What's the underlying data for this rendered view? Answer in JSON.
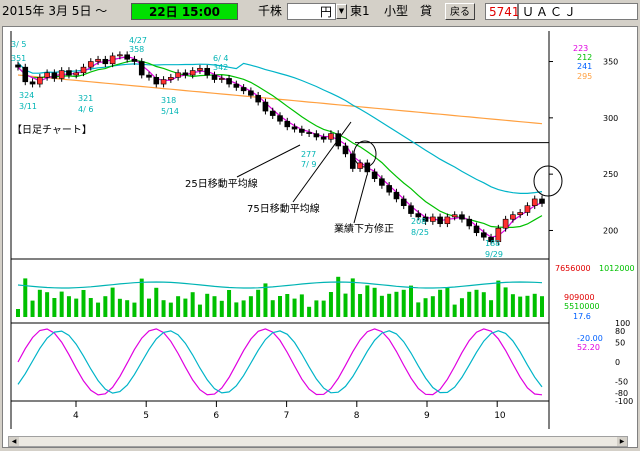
{
  "toolbar": {
    "date_label": "2015年 3月 5日 ～",
    "end_time": "22日 15:00",
    "unit_label": "千株",
    "currency_label": "円",
    "market_label": "東1",
    "type_label": "小型",
    "loan_label": "貸",
    "back_label": "戻る",
    "code": "5741",
    "company": "ＵＡＣＪ"
  },
  "chart_title": "【日足チャート】",
  "annotations": {
    "ma25": "25日移動平均線",
    "ma75": "75日移動平均線",
    "earnings": "業績下方修正"
  },
  "price_labels": [
    {
      "text": "3/ 5"
    },
    {
      "text": "351"
    },
    {
      "text": "4/27"
    },
    {
      "text": "358"
    },
    {
      "text": "6/ 4"
    },
    {
      "text": "342"
    },
    {
      "text": "324"
    },
    {
      "text": "3/11"
    },
    {
      "text": "321"
    },
    {
      "text": "4/ 6"
    },
    {
      "text": "318"
    },
    {
      "text": "5/14"
    },
    {
      "text": "277"
    },
    {
      "text": "7/ 9"
    },
    {
      "text": "208"
    },
    {
      "text": "8/25"
    },
    {
      "text": "188"
    },
    {
      "text": "9/29"
    }
  ],
  "legend": {
    "price": [
      "223",
      "212",
      "241",
      "295"
    ],
    "volume": [
      "7656000",
      "1012000"
    ],
    "vol_low": [
      "909000",
      "5510000",
      "17.6"
    ],
    "osc": [
      "-20.00",
      "52.20"
    ]
  },
  "colors": {
    "price_label": "#00b4b4",
    "ma5": "#e000e0",
    "ma25": "#00c000",
    "ma75": "#00b4c8",
    "ma200": "#ffa040",
    "vol_line": "#00b4b4",
    "osc_a": "#e000e0",
    "osc_b": "#00b4c8",
    "legend_green": "#00c000",
    "legend_red": "#e00000",
    "legend_magenta": "#e000e0"
  },
  "chart_data": {
    "type": "candlestick",
    "x_ticks": [
      "4",
      "5",
      "6",
      "7",
      "8",
      "9",
      "10"
    ],
    "y_ticks": [
      "350",
      "300",
      "250",
      "200"
    ],
    "ylim": [
      180,
      370
    ],
    "volume_ticks": [],
    "osc_ticks": [
      "100",
      "80",
      "50",
      "0",
      "-50",
      "-80",
      "-100"
    ],
    "support_line": 278,
    "series": {
      "close": [
        345,
        332,
        330,
        336,
        340,
        335,
        342,
        338,
        340,
        345,
        350,
        352,
        348,
        355,
        356,
        352,
        350,
        338,
        336,
        330,
        334,
        336,
        340,
        338,
        342,
        344,
        338,
        334,
        335,
        330,
        327,
        324,
        320,
        314,
        306,
        302,
        297,
        292,
        290,
        287,
        286,
        283,
        281,
        286,
        275,
        268,
        255,
        260,
        252,
        246,
        240,
        234,
        228,
        222,
        215,
        212,
        208,
        212,
        206,
        212,
        214,
        210,
        204,
        198,
        194,
        190,
        202,
        210,
        214,
        216,
        222,
        228,
        224
      ]
    }
  }
}
